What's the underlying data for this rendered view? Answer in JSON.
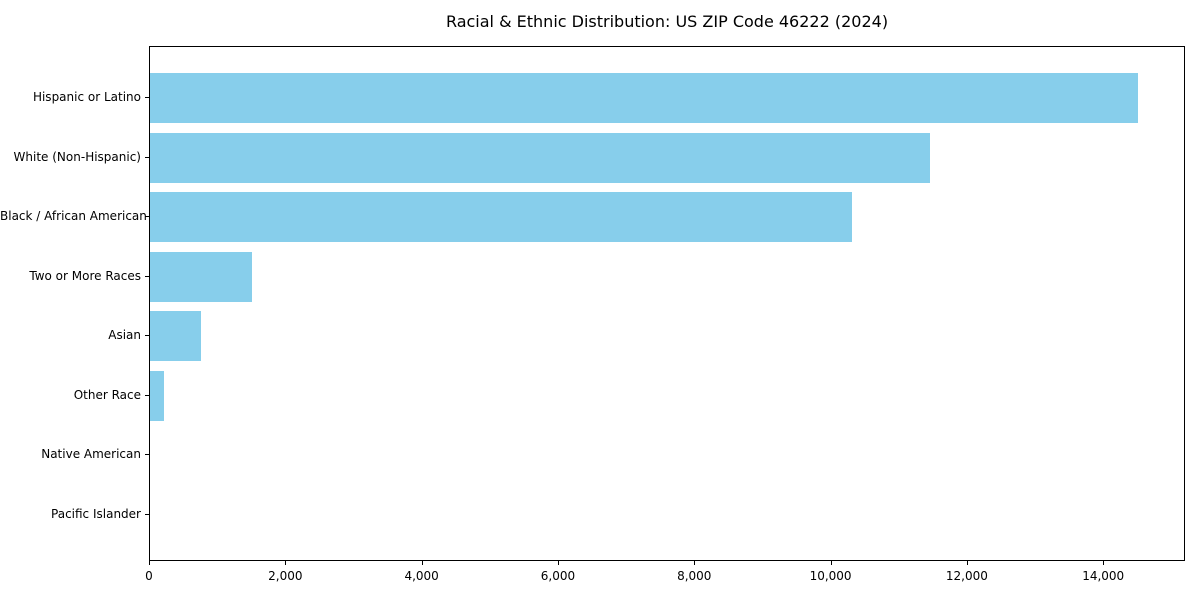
{
  "chart_data": {
    "type": "bar",
    "orientation": "horizontal",
    "title": "Racial & Ethnic Distribution: US ZIP Code 46222 (2024)",
    "categories": [
      "Hispanic or Latino",
      "White (Non-Hispanic)",
      "Black / African American",
      "Two or More Races",
      "Asian",
      "Other Race",
      "Native American",
      "Pacific Islander"
    ],
    "values": [
      14500,
      11450,
      10300,
      1500,
      750,
      200,
      0,
      0
    ],
    "xlabel": "",
    "ylabel": "",
    "xlim": [
      0,
      15200
    ],
    "x_ticks": [
      0,
      2000,
      4000,
      6000,
      8000,
      10000,
      12000,
      14000
    ],
    "x_tick_labels": [
      "0",
      "2,000",
      "4,000",
      "6,000",
      "8,000",
      "10,000",
      "12,000",
      "14,000"
    ],
    "bar_color": "#87CEEB",
    "frame_color": "#000000",
    "grid": false,
    "legend": null
  }
}
